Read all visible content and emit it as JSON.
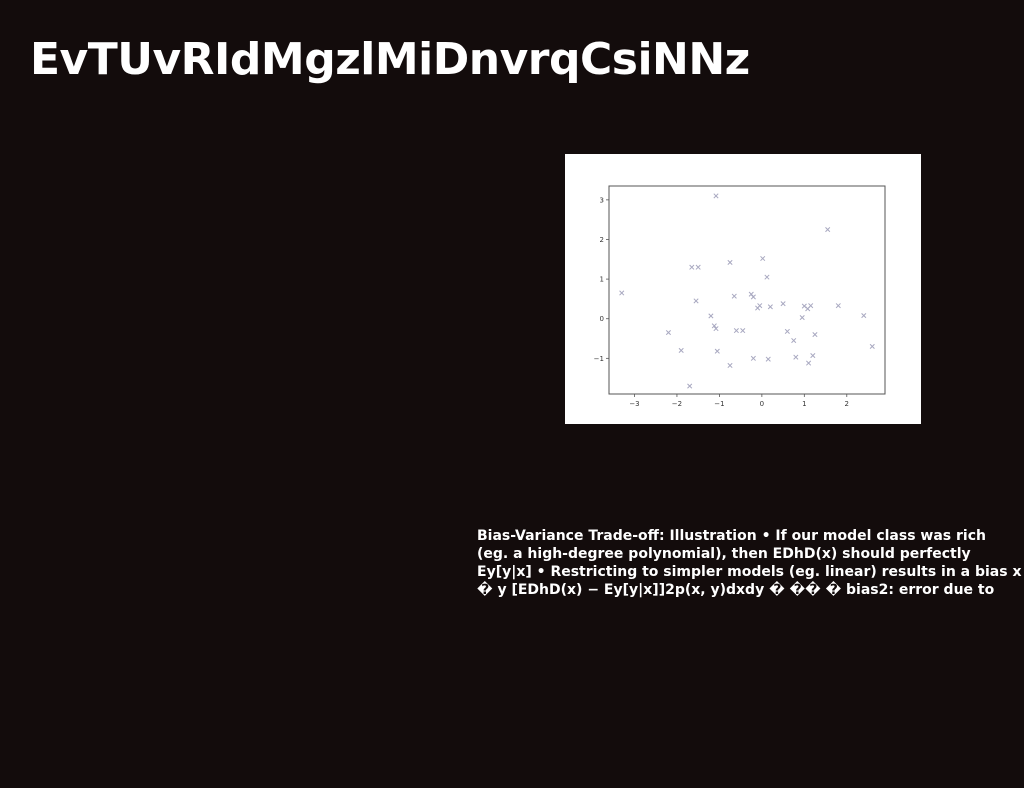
{
  "slide": {
    "title": "EvTUvRIdMgzlMiDnvrqCsiNNz",
    "body": "Bias-Variance Trade-off: Illustration • If our model class was rich (eg. a high-degree polynomial), then EDhD(x) should perfectly Ey[y|x] • Restricting to simpler models (eg. linear) results in a bias x � y [EDhD(x) − Ey[y|x]]2p(x, y)dxdy � �� � bias2: error due to"
  },
  "chart_data": {
    "type": "scatter",
    "marker": "x",
    "marker_color": "#a8a8c0",
    "background": "#ffffff",
    "title": "",
    "xlabel": "",
    "ylabel": "",
    "xlim": [
      -3.6,
      2.9
    ],
    "ylim": [
      -1.9,
      3.35
    ],
    "grid": false,
    "xticks": [
      -3,
      -2,
      -1,
      0,
      1,
      2
    ],
    "xtick_labels": [
      "−3",
      "−2",
      "−1",
      "0",
      "1",
      "2"
    ],
    "yticks": [
      -1,
      0,
      1,
      2,
      3
    ],
    "ytick_labels": [
      "−1",
      "0",
      "1",
      "2",
      "3"
    ],
    "points": [
      {
        "x": -3.3,
        "y": 0.65
      },
      {
        "x": -2.2,
        "y": -0.35
      },
      {
        "x": -1.9,
        "y": -0.8
      },
      {
        "x": -1.7,
        "y": -1.7
      },
      {
        "x": -1.65,
        "y": 1.3
      },
      {
        "x": -1.5,
        "y": 1.3
      },
      {
        "x": -1.55,
        "y": 0.45
      },
      {
        "x": -1.2,
        "y": 0.07
      },
      {
        "x": -1.12,
        "y": -0.18
      },
      {
        "x": -1.08,
        "y": -0.25
      },
      {
        "x": -1.08,
        "y": 3.1
      },
      {
        "x": -1.05,
        "y": -0.82
      },
      {
        "x": -0.75,
        "y": 1.42
      },
      {
        "x": -0.75,
        "y": -1.18
      },
      {
        "x": -0.65,
        "y": 0.57
      },
      {
        "x": -0.6,
        "y": -0.3
      },
      {
        "x": -0.45,
        "y": -0.3
      },
      {
        "x": -0.25,
        "y": 0.62
      },
      {
        "x": -0.2,
        "y": 0.55
      },
      {
        "x": -0.2,
        "y": -1.0
      },
      {
        "x": -0.1,
        "y": 0.27
      },
      {
        "x": -0.05,
        "y": 0.33
      },
      {
        "x": 0.02,
        "y": 1.52
      },
      {
        "x": 0.12,
        "y": 1.05
      },
      {
        "x": 0.15,
        "y": -1.02
      },
      {
        "x": 0.2,
        "y": 0.3
      },
      {
        "x": 0.5,
        "y": 0.38
      },
      {
        "x": 0.6,
        "y": -0.32
      },
      {
        "x": 0.75,
        "y": -0.55
      },
      {
        "x": 0.8,
        "y": -0.97
      },
      {
        "x": 0.95,
        "y": 0.03
      },
      {
        "x": 1.0,
        "y": 0.32
      },
      {
        "x": 1.08,
        "y": 0.25
      },
      {
        "x": 1.1,
        "y": -1.12
      },
      {
        "x": 1.15,
        "y": 0.33
      },
      {
        "x": 1.2,
        "y": -0.93
      },
      {
        "x": 1.25,
        "y": -0.4
      },
      {
        "x": 1.55,
        "y": 2.25
      },
      {
        "x": 1.8,
        "y": 0.33
      },
      {
        "x": 2.4,
        "y": 0.08
      },
      {
        "x": 2.6,
        "y": -0.7
      }
    ]
  }
}
